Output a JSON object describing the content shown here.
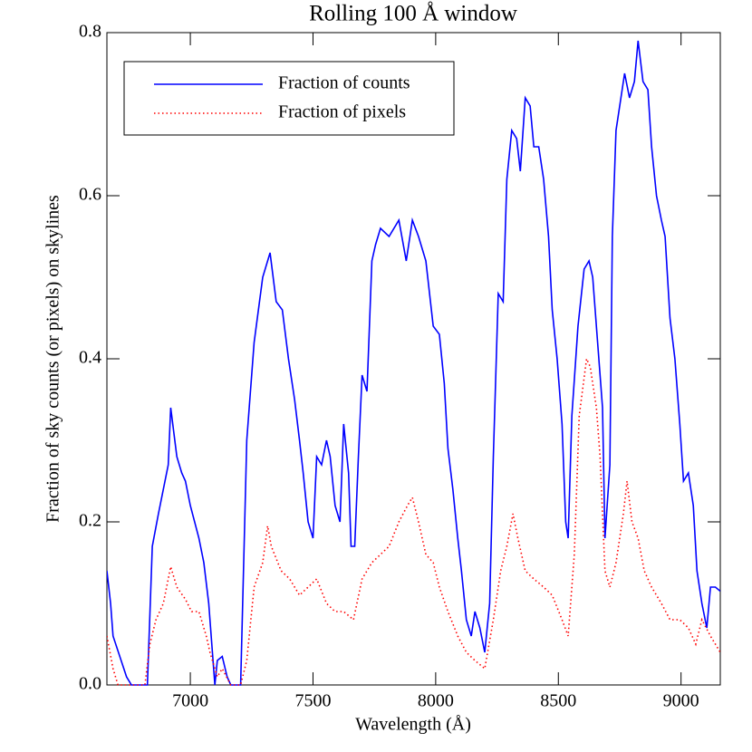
{
  "chart_data": {
    "type": "line",
    "title": "Rolling 100 Å  window",
    "x_label": "Wavelength (Å)",
    "y_label": "Fraction of sky counts (or pixels) on skylines",
    "xlim": [
      6660,
      9160
    ],
    "ylim": [
      0,
      0.8
    ],
    "xticks": [
      7000,
      7500,
      8000,
      8500,
      9000
    ],
    "yticks": [
      {
        "value": 0,
        "label": "0.0"
      },
      0.2,
      0.4,
      0.6,
      0.8
    ],
    "legend": "upper left",
    "series": [
      {
        "name": "Fraction of counts",
        "color": "#0000ff",
        "linestyle": "solid",
        "x": [
          6660,
          6675,
          6685,
          6740,
          6760,
          6825,
          6845,
          6870,
          6910,
          6920,
          6945,
          6965,
          6980,
          7000,
          7035,
          7055,
          7075,
          7100,
          7110,
          7130,
          7150,
          7165,
          7205,
          7230,
          7260,
          7295,
          7325,
          7350,
          7375,
          7400,
          7425,
          7445,
          7460,
          7480,
          7500,
          7515,
          7535,
          7555,
          7570,
          7590,
          7610,
          7625,
          7645,
          7655,
          7670,
          7685,
          7700,
          7720,
          7740,
          7755,
          7775,
          7810,
          7850,
          7880,
          7905,
          7930,
          7960,
          7990,
          8015,
          8035,
          8050,
          8070,
          8090,
          8105,
          8125,
          8145,
          8160,
          8180,
          8200,
          8220,
          8235,
          8255,
          8275,
          8290,
          8310,
          8330,
          8345,
          8365,
          8385,
          8400,
          8420,
          8440,
          8460,
          8475,
          8495,
          8515,
          8530,
          8540,
          8555,
          8580,
          8605,
          8625,
          8640,
          8660,
          8680,
          8690,
          8710,
          8720,
          8735,
          8755,
          8770,
          8790,
          8810,
          8825,
          8845,
          8865,
          8880,
          8900,
          8920,
          8935,
          8955,
          8975,
          8995,
          9010,
          9030,
          9050,
          9065,
          9085,
          9105,
          9120,
          9140,
          9160
        ],
        "values": [
          0.14,
          0.1,
          0.06,
          0.01,
          0,
          0,
          0.17,
          0.21,
          0.27,
          0.34,
          0.28,
          0.26,
          0.25,
          0.22,
          0.18,
          0.15,
          0.1,
          0,
          0.03,
          0.035,
          0.01,
          0,
          0,
          0.3,
          0.42,
          0.5,
          0.53,
          0.47,
          0.46,
          0.4,
          0.35,
          0.3,
          0.26,
          0.2,
          0.18,
          0.28,
          0.27,
          0.3,
          0.28,
          0.22,
          0.2,
          0.32,
          0.26,
          0.17,
          0.17,
          0.28,
          0.38,
          0.36,
          0.52,
          0.54,
          0.56,
          0.55,
          0.57,
          0.52,
          0.57,
          0.55,
          0.52,
          0.44,
          0.43,
          0.37,
          0.29,
          0.24,
          0.18,
          0.14,
          0.08,
          0.06,
          0.09,
          0.07,
          0.04,
          0.1,
          0.28,
          0.48,
          0.47,
          0.62,
          0.68,
          0.67,
          0.63,
          0.72,
          0.71,
          0.66,
          0.66,
          0.62,
          0.55,
          0.46,
          0.4,
          0.32,
          0.2,
          0.18,
          0.33,
          0.44,
          0.51,
          0.52,
          0.5,
          0.42,
          0.34,
          0.18,
          0.27,
          0.55,
          0.68,
          0.72,
          0.75,
          0.72,
          0.74,
          0.79,
          0.74,
          0.73,
          0.66,
          0.6,
          0.57,
          0.55,
          0.45,
          0.4,
          0.32,
          0.25,
          0.26,
          0.22,
          0.14,
          0.1,
          0.07,
          0.12,
          0.12,
          0.115
        ]
      },
      {
        "name": "Fraction of pixels",
        "color": "#ff0000",
        "linestyle": "dotted",
        "x": [
          6660,
          6685,
          6705,
          6815,
          6835,
          6860,
          6890,
          6920,
          6945,
          6980,
          7005,
          7035,
          7065,
          7080,
          7110,
          7130,
          7165,
          7205,
          7230,
          7260,
          7295,
          7315,
          7330,
          7370,
          7405,
          7445,
          7480,
          7515,
          7555,
          7590,
          7625,
          7665,
          7700,
          7740,
          7775,
          7810,
          7850,
          7885,
          7905,
          7930,
          7960,
          7990,
          8015,
          8050,
          8090,
          8125,
          8160,
          8200,
          8235,
          8265,
          8290,
          8315,
          8335,
          8365,
          8400,
          8440,
          8475,
          8515,
          8540,
          8565,
          8585,
          8615,
          8630,
          8655,
          8670,
          8690,
          8710,
          8735,
          8765,
          8780,
          8800,
          8825,
          8850,
          8880,
          8920,
          8955,
          8995,
          9030,
          9060,
          9085,
          9120,
          9160
        ],
        "values": [
          0.06,
          0.02,
          0,
          0,
          0.05,
          0.08,
          0.1,
          0.145,
          0.12,
          0.105,
          0.09,
          0.09,
          0.06,
          0.04,
          0.01,
          0.02,
          0,
          0,
          0.03,
          0.12,
          0.15,
          0.195,
          0.17,
          0.14,
          0.13,
          0.11,
          0.12,
          0.13,
          0.1,
          0.09,
          0.09,
          0.08,
          0.13,
          0.15,
          0.16,
          0.17,
          0.2,
          0.22,
          0.23,
          0.2,
          0.16,
          0.15,
          0.12,
          0.09,
          0.06,
          0.04,
          0.03,
          0.02,
          0.08,
          0.14,
          0.17,
          0.21,
          0.18,
          0.14,
          0.13,
          0.12,
          0.11,
          0.08,
          0.06,
          0.16,
          0.33,
          0.4,
          0.39,
          0.34,
          0.28,
          0.14,
          0.12,
          0.15,
          0.21,
          0.25,
          0.2,
          0.18,
          0.14,
          0.12,
          0.1,
          0.08,
          0.08,
          0.07,
          0.05,
          0.08,
          0.06,
          0.04
        ]
      }
    ]
  }
}
